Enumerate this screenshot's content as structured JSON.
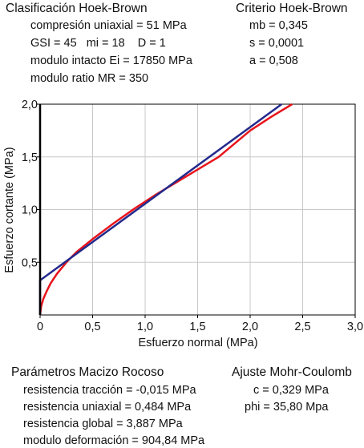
{
  "classification": {
    "title": "Clasificación Hoek-Brown",
    "lines": [
      "compresión uniaxial = 51 MPa",
      "GSI = 45   mi = 18    D = 1",
      "modulo intacto Ei = 17850 MPa",
      "modulo ratio MR = 350"
    ]
  },
  "criterion": {
    "title": "Criterio Hoek-Brown",
    "lines": [
      "mb = 0,345",
      "s = 0,0001",
      "a = 0,508"
    ]
  },
  "rock_mass": {
    "title": "Parámetros Macizo Rocoso",
    "lines": [
      "resistencia tracción = -0,015 MPa",
      "resistencia uniaxial = 0,484 MPa",
      "resistencia global = 3,887 MPa",
      "modulo deformación = 904,84 MPa"
    ]
  },
  "mohr_coulomb": {
    "title": "Ajuste Mohr-Coulomb",
    "lines": [
      "c = 0,329 MPa",
      "phi = 35,80 Mpa"
    ]
  },
  "chart_data": {
    "type": "line",
    "xlabel": "Esfuerzo normal (MPa)",
    "ylabel": "Esfuerzo cortante (MPa)",
    "xlim": [
      0,
      3.0
    ],
    "ylim": [
      0,
      2.0
    ],
    "x_ticks": [
      "0",
      "0,5",
      "1,0",
      "1,5",
      "2,0",
      "2,5",
      "3,0"
    ],
    "y_ticks": [
      "0,5",
      "1,0",
      "1,5",
      "2,0"
    ],
    "grid": true,
    "series": [
      {
        "color": "#e8141c",
        "x": [
          0.0,
          0.01,
          0.03,
          0.06,
          0.1,
          0.16,
          0.25,
          0.35,
          0.5,
          0.7,
          0.9,
          1.1,
          1.4,
          1.7,
          2.0,
          2.2,
          2.4
        ],
        "y": [
          0.0,
          0.08,
          0.15,
          0.22,
          0.3,
          0.39,
          0.5,
          0.6,
          0.72,
          0.87,
          1.01,
          1.14,
          1.32,
          1.5,
          1.75,
          1.88,
          2.0
        ]
      },
      {
        "color": "#232a8c",
        "x": [
          0.0,
          0.0,
          0.0,
          2.3
        ],
        "y": [
          0.0,
          0.33,
          0.329,
          2.0
        ]
      }
    ]
  }
}
